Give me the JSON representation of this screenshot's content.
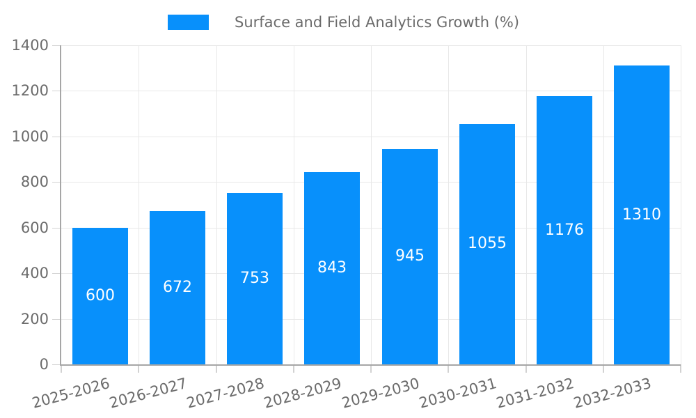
{
  "chart_data": {
    "type": "bar",
    "categories": [
      "2025-2026",
      "2026-2027",
      "2027-2028",
      "2028-2029",
      "2029-2030",
      "2030-2031",
      "2031-2032",
      "2032-2033"
    ],
    "series": [
      {
        "name": "Surface and Field Analytics Growth (%)",
        "values": [
          600,
          672,
          753,
          843,
          945,
          1055,
          1176,
          1310
        ]
      }
    ],
    "title": "Surface and Field Analytics Growth (%)",
    "xlabel": "",
    "ylabel": "",
    "ylim": [
      0,
      1400
    ],
    "yticks": [
      0,
      200,
      400,
      600,
      800,
      1000,
      1200,
      1400
    ],
    "grid": "on",
    "legend_position": "top-center",
    "x_label_rotation_deg": -15,
    "data_labels_position": "center-of-bar",
    "colors": {
      "bar": "#0890fb",
      "grid": "#e8e8e8",
      "tick": "#d2d2d2",
      "axis": "#a6a6a6",
      "text": "#6b6b6b",
      "data_label": "#ffffff",
      "background": "#ffffff"
    }
  }
}
